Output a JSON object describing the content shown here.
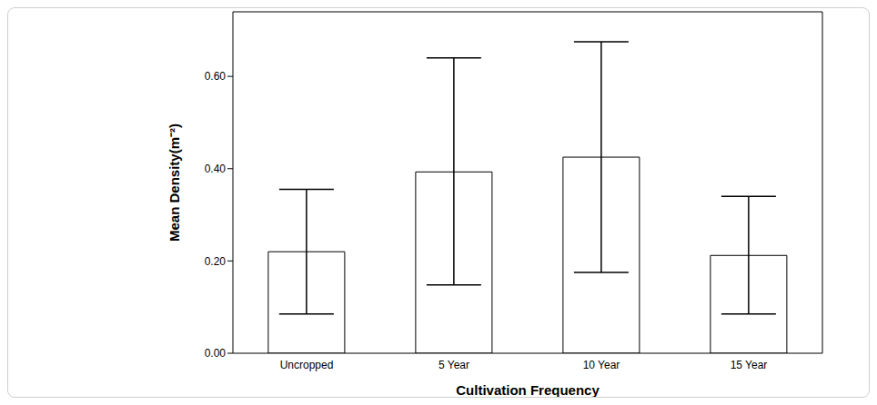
{
  "chart_data": {
    "type": "bar",
    "x_label": "Cultivation Frequency",
    "y_label": "Mean Density(m⁻²)",
    "categories": [
      "Uncropped",
      "5 Year",
      "10 Year",
      "15 Year"
    ],
    "values": [
      0.22,
      0.393,
      0.425,
      0.212
    ],
    "error_lower": [
      0.085,
      0.148,
      0.175,
      0.085
    ],
    "error_upper": [
      0.355,
      0.64,
      0.675,
      0.34
    ],
    "color": "#ffffff",
    "ylim": [
      0,
      0.74
    ],
    "yticks": [
      {
        "value": 0,
        "label": "0.00"
      },
      {
        "value": 0.2,
        "label": "0.20"
      },
      {
        "value": 0.4,
        "label": "0.40"
      },
      {
        "value": 0.6,
        "label": "0.60"
      }
    ],
    "grid": false
  }
}
